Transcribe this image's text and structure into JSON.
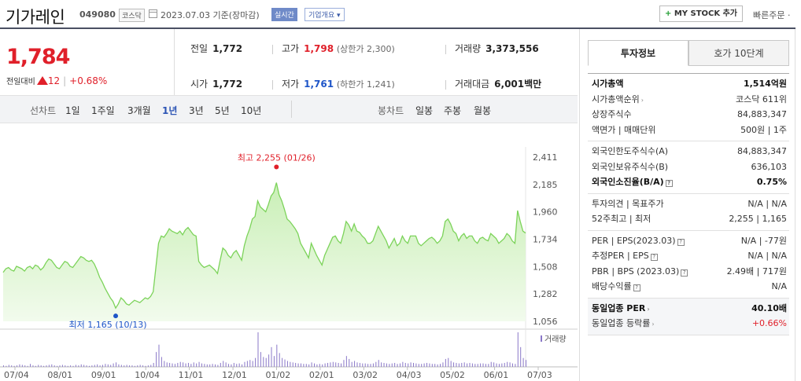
{
  "header": {
    "name": "기가레인",
    "code": "049080",
    "market": "코스닥",
    "date": "2023.07.03 기준(장마감)",
    "realtime": "실시간",
    "overview": "기업개요 ▾",
    "mystock": "MY STOCK 추가",
    "mystock_plus": "+",
    "quick_order": "빠른주문 ·"
  },
  "price": {
    "current": "1,784",
    "change_label": "전일대비",
    "change": "12",
    "change_pct": "+0.68%"
  },
  "info": {
    "prev_close": {
      "label": "전일",
      "value": "1,772"
    },
    "high": {
      "label": "고가",
      "value": "1,798",
      "sub": "(상한가 2,300)"
    },
    "volume": {
      "label": "거래량",
      "value": "3,373,556"
    },
    "open": {
      "label": "시가",
      "value": "1,772"
    },
    "low": {
      "label": "저가",
      "value": "1,761",
      "sub": "(하한가 1,241)"
    },
    "amount": {
      "label": "거래대금",
      "value": "6,001",
      "unit": "백만"
    }
  },
  "period_bar": {
    "line_label": "선차트",
    "periods": [
      "1일",
      "1주일",
      "3개월",
      "1년",
      "3년",
      "5년",
      "10년"
    ],
    "active": "1년",
    "candle_label": "봉차트",
    "candles": [
      "일봉",
      "주봉",
      "월봉"
    ]
  },
  "colors": {
    "up": "#e0202a",
    "down": "#1e55c8",
    "line": "#7cd35a",
    "fill_top": "#c9efb6",
    "fill_bottom": "#f2fbed",
    "volume": "#8a78c8"
  },
  "chart_data": {
    "type": "area",
    "title": "",
    "ylim": [
      1056,
      2411
    ],
    "y_ticks": [
      "2,411",
      "2,185",
      "1,960",
      "1,734",
      "1,508",
      "1,282",
      "1,056"
    ],
    "x_ticks": [
      "07/04",
      "08/01",
      "09/01",
      "10/04",
      "11/01",
      "12/01",
      "01/02",
      "02/01",
      "03/02",
      "04/03",
      "05/02",
      "06/01",
      "07/03"
    ],
    "high_annotation": "최고 2,255 (01/26)",
    "low_annotation": "최저 1,165 (10/13)",
    "volume_label": "거래량",
    "series": [
      {
        "values": [
          1460,
          1490,
          1500,
          1480,
          1470,
          1510,
          1500,
          1490,
          1470,
          1500,
          1510,
          1490,
          1520,
          1510,
          1480,
          1500,
          1540,
          1570,
          1560,
          1530,
          1500,
          1490,
          1520,
          1550,
          1540,
          1510,
          1500,
          1530,
          1560,
          1590,
          1580,
          1560,
          1550,
          1560,
          1530,
          1480,
          1420,
          1380,
          1330,
          1290,
          1250,
          1220,
          1165,
          1200,
          1250,
          1230,
          1200,
          1190,
          1210,
          1230,
          1220,
          1210,
          1230,
          1250,
          1240,
          1260,
          1300,
          1500,
          1700,
          1760,
          1750,
          1780,
          1820,
          1800,
          1790,
          1780,
          1800,
          1770,
          1810,
          1830,
          1800,
          1770,
          1760,
          1550,
          1520,
          1500,
          1510,
          1520,
          1500,
          1480,
          1450,
          1560,
          1660,
          1640,
          1600,
          1580,
          1620,
          1640,
          1600,
          1560,
          1680,
          1760,
          1820,
          1900,
          1920,
          2050,
          2000,
          1980,
          1960,
          2020,
          2090,
          2120,
          2200,
          2100,
          2050,
          1980,
          1900,
          1880,
          1850,
          1820,
          1780,
          1700,
          1660,
          1620,
          1580,
          1700,
          1650,
          1600,
          1560,
          1520,
          1600,
          1650,
          1700,
          1750,
          1760,
          1720,
          1700,
          1780,
          1880,
          1850,
          1800,
          1860,
          1800,
          1790,
          1760,
          1740,
          1700,
          1700,
          1720,
          1780,
          1840,
          1800,
          1760,
          1720,
          1660,
          1700,
          1740,
          1680,
          1700,
          1760,
          1720,
          1700,
          1760,
          1760,
          1760,
          1700,
          1680,
          1700,
          1720,
          1740,
          1750,
          1730,
          1700,
          1720,
          1760,
          1880,
          1900,
          1860,
          1800,
          1780,
          1720,
          1760,
          1780,
          1740,
          1760,
          1760,
          1720,
          1700,
          1740,
          1750,
          1730,
          1720,
          1780,
          1760,
          1740,
          1700,
          1720,
          1740,
          1780,
          1760,
          1720,
          1700,
          1970,
          1880,
          1800,
          1784
        ]
      }
    ],
    "volume": [
      3,
      2,
      4,
      3,
      2,
      3,
      5,
      4,
      3,
      2,
      6,
      3,
      2,
      4,
      3,
      2,
      3,
      4,
      5,
      3,
      2,
      3,
      4,
      3,
      2,
      3,
      2,
      4,
      3,
      5,
      4,
      3,
      2,
      3,
      4,
      5,
      3,
      4,
      6,
      5,
      4,
      7,
      9,
      5,
      4,
      3,
      4,
      3,
      3,
      2,
      3,
      4,
      3,
      2,
      3,
      4,
      8,
      30,
      45,
      20,
      12,
      9,
      8,
      7,
      6,
      8,
      10,
      9,
      7,
      8,
      6,
      9,
      7,
      10,
      7,
      6,
      5,
      5,
      6,
      5,
      4,
      8,
      12,
      9,
      6,
      5,
      8,
      6,
      7,
      5,
      10,
      12,
      14,
      12,
      18,
      70,
      30,
      20,
      18,
      25,
      40,
      22,
      45,
      28,
      18,
      15,
      12,
      10,
      9,
      8,
      7,
      7,
      6,
      6,
      5,
      9,
      7,
      5,
      6,
      5,
      7,
      8,
      9,
      10,
      9,
      8,
      7,
      14,
      22,
      16,
      10,
      12,
      9,
      8,
      7,
      7,
      6,
      6,
      7,
      10,
      14,
      9,
      8,
      7,
      6,
      7,
      8,
      6,
      7,
      10,
      8,
      7,
      9,
      8,
      7,
      6,
      6,
      7,
      8,
      7,
      6,
      6,
      5,
      6,
      9,
      16,
      18,
      12,
      9,
      8,
      7,
      8,
      9,
      7,
      8,
      7,
      6,
      6,
      7,
      7,
      6,
      6,
      10,
      9,
      7,
      6,
      7,
      8,
      10,
      9,
      7,
      6,
      70,
      40,
      18,
      14
    ]
  },
  "right_panel": {
    "tab_active": "투자정보",
    "tab_inactive": "호가 10단계",
    "groups": [
      {
        "rows": [
          {
            "k": "시가총액",
            "v": "1,514억원",
            "bold": true
          },
          {
            "k": "시가총액순위",
            "v": "코스닥 611위",
            "arrow": true
          },
          {
            "k": "상장주식수",
            "v": "84,883,347"
          },
          {
            "k": "액면가 | 매매단위",
            "v": "500원 | 1주"
          }
        ]
      },
      {
        "rows": [
          {
            "k": "외국인한도주식수(A)",
            "v": "84,883,347"
          },
          {
            "k": "외국인보유주식수(B)",
            "v": "636,103"
          },
          {
            "k": "외국인소진율(B/A)",
            "v": "0.75%",
            "bold": true,
            "info": true
          }
        ]
      },
      {
        "rows": [
          {
            "k": "투자의견 | 목표주가",
            "v": "N/A | N/A"
          },
          {
            "k": "52주최고 | 최저",
            "v": "2,255 | 1,165"
          }
        ]
      },
      {
        "rows": [
          {
            "k": "PER | EPS(2023.03)",
            "v": "N/A | -77원",
            "info": true
          },
          {
            "k": "추정PER | EPS",
            "v": "N/A | N/A",
            "info": true
          },
          {
            "k": "PBR | BPS (2023.03)",
            "v": "2.49배 | 717원",
            "info": true
          },
          {
            "k": "배당수익률",
            "v": "N/A",
            "info": true
          }
        ]
      },
      {
        "rows": [
          {
            "k": "동일업종 PER",
            "v": "40.10배",
            "bold": true,
            "arrow": true
          },
          {
            "k": "동일업종 등락률",
            "v": "+0.66%",
            "up": true,
            "arrow": true
          }
        ]
      }
    ]
  }
}
